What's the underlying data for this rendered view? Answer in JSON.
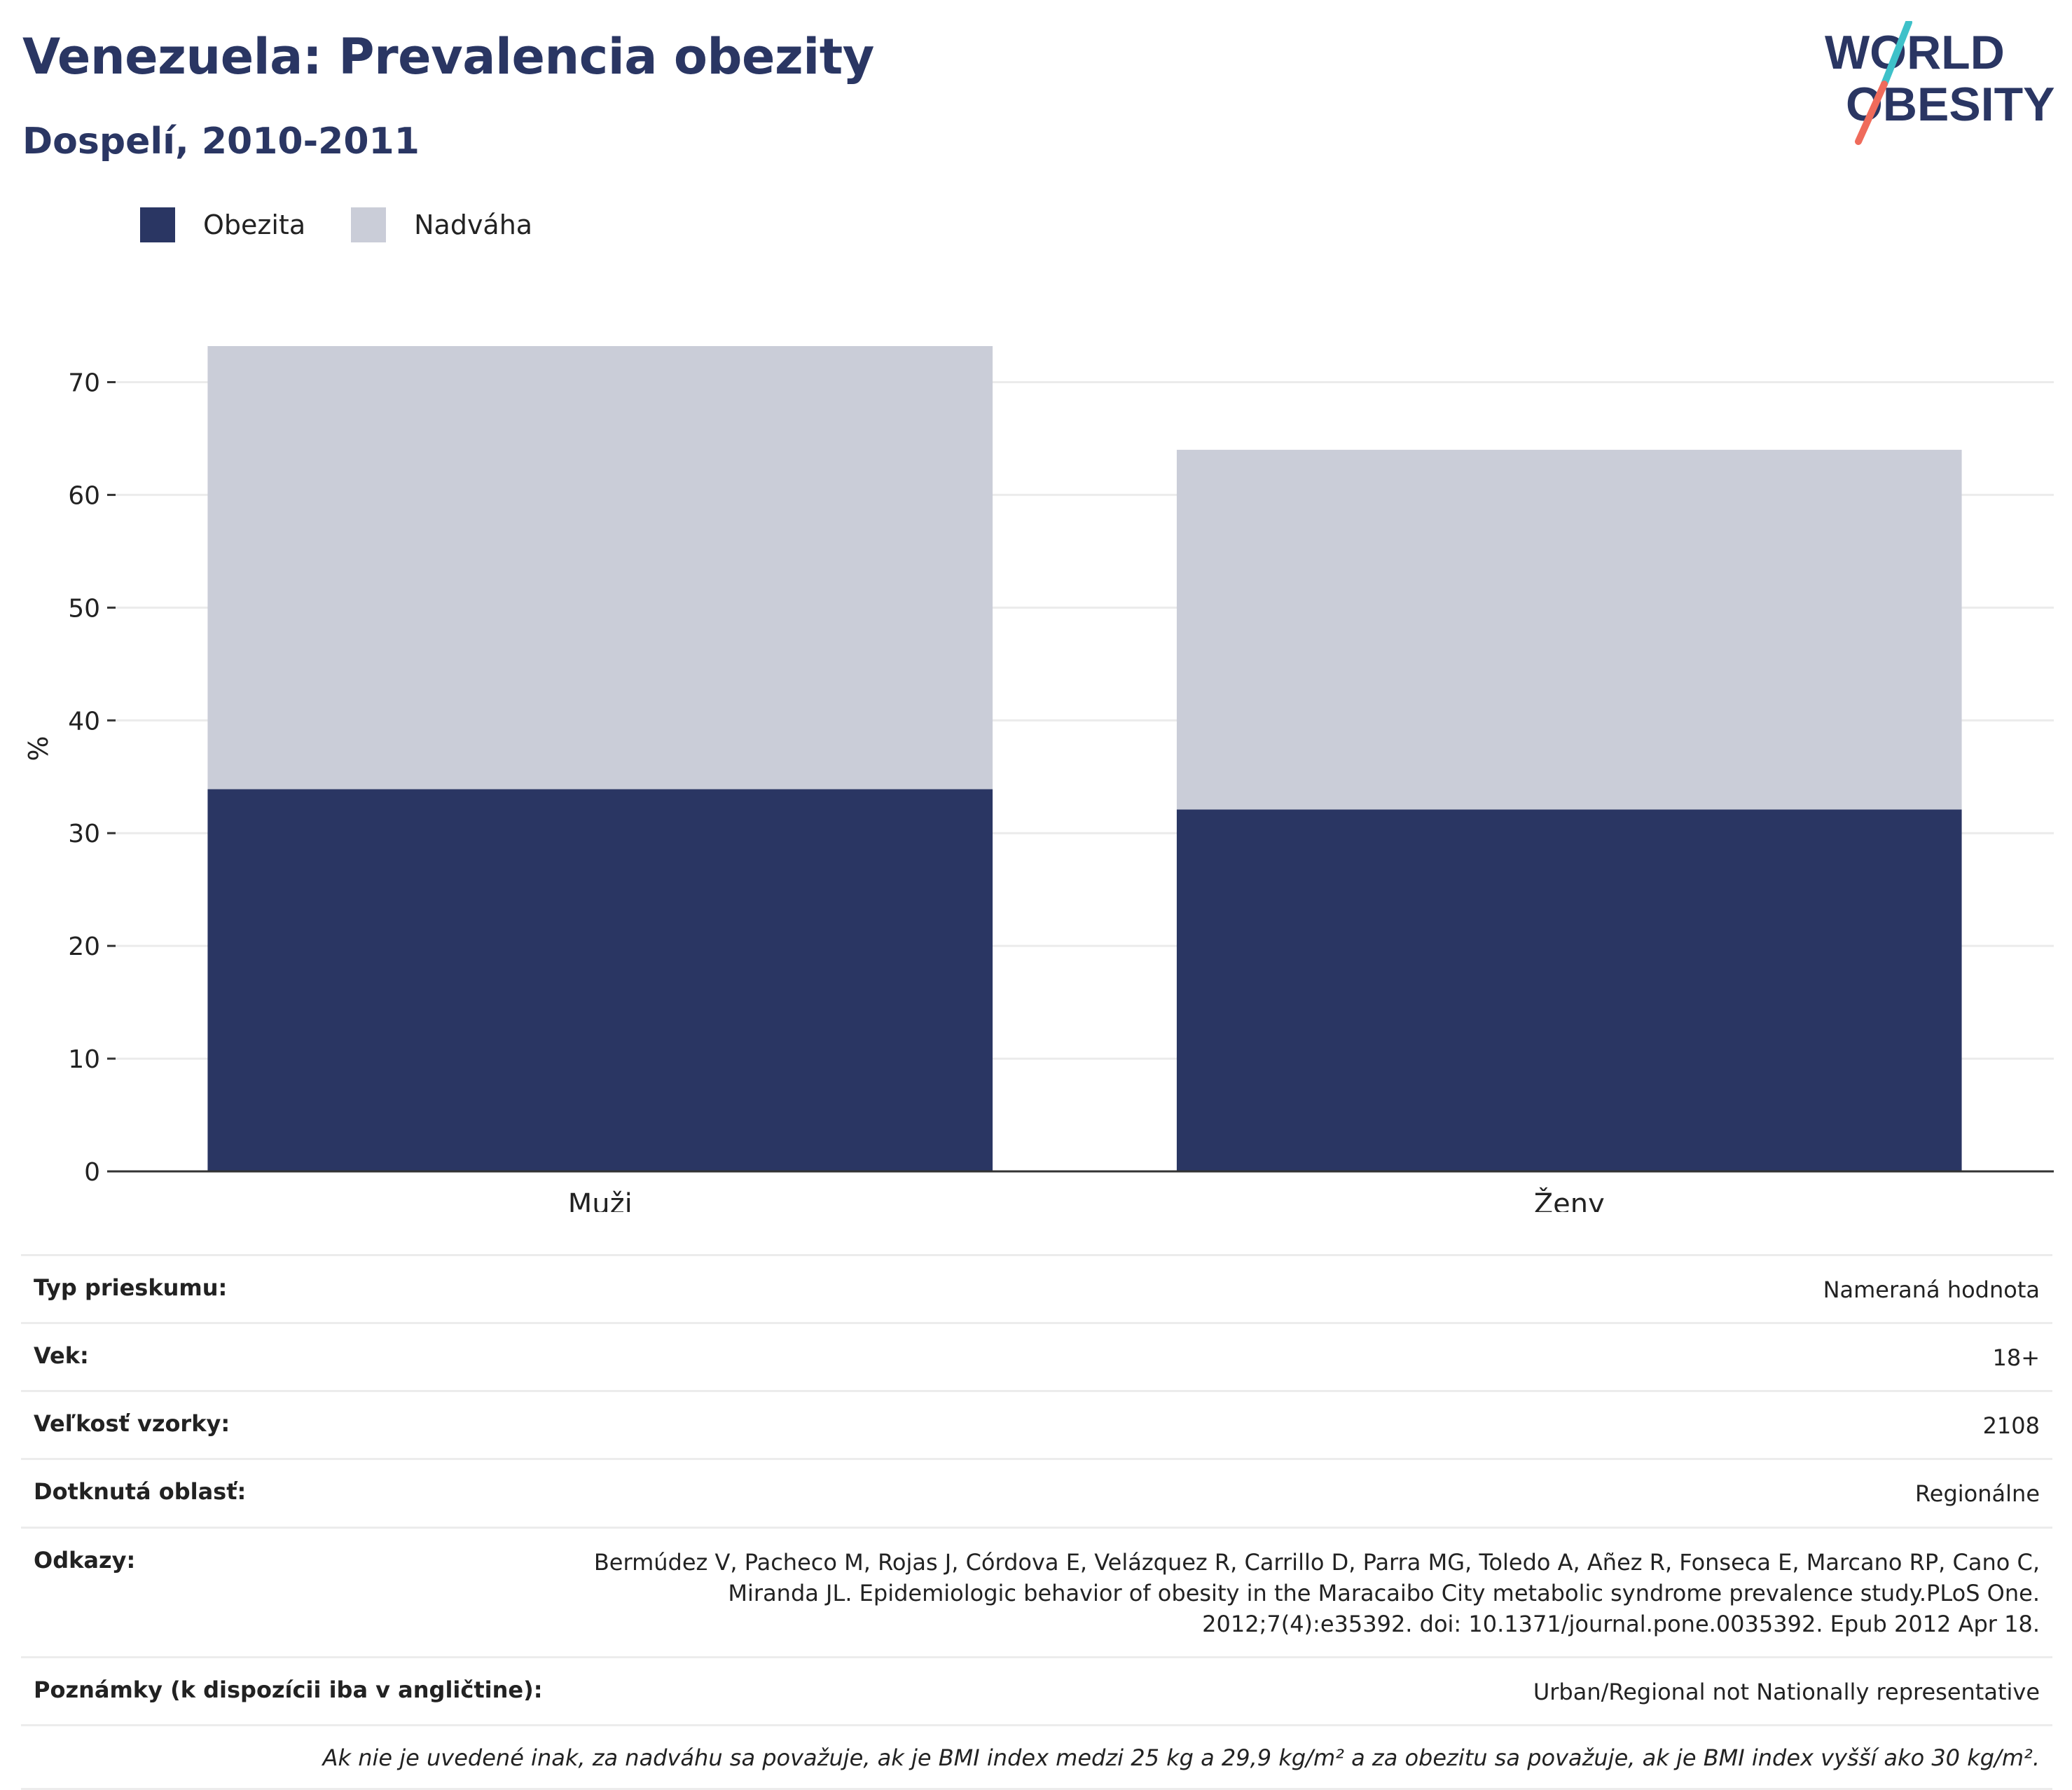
{
  "header": {
    "title": "Venezuela: Prevalencia obezity",
    "subtitle": "Dospelí, 2010-2011",
    "logo_line1": "WORLD",
    "logo_line2": "OBESITY"
  },
  "legend": [
    {
      "label": "Obezita",
      "color": "#2a3663"
    },
    {
      "label": "Nadváha",
      "color": "#cacdd8"
    }
  ],
  "chart_data": {
    "type": "bar",
    "stacked": true,
    "categories": [
      "Muži",
      "Ženy"
    ],
    "series": [
      {
        "name": "Obezita",
        "values": [
          33.9,
          32.1
        ],
        "color": "#2a3663"
      },
      {
        "name": "Nadváha",
        "values": [
          39.3,
          31.9
        ],
        "color": "#cacdd8"
      }
    ],
    "totals": [
      73.2,
      64.0
    ],
    "ylabel": "%",
    "ylim": [
      0,
      75
    ],
    "yticks": [
      0,
      10,
      20,
      30,
      40,
      50,
      60,
      70
    ],
    "grid": true,
    "legend_position": "top-left"
  },
  "info": {
    "rows": [
      {
        "key": "Typ prieskumu:",
        "value": "Nameraná hodnota"
      },
      {
        "key": "Vek:",
        "value": "18+"
      },
      {
        "key": "Veľkosť vzorky:",
        "value": "2108"
      },
      {
        "key": "Dotknutá oblasť:",
        "value": "Regionálne"
      },
      {
        "key": "Odkazy:",
        "value": "Bermúdez V, Pacheco M, Rojas J, Córdova E, Velázquez R, Carrillo D, Parra MG, Toledo A, Añez R, Fonseca E, Marcano RP, Cano C, Miranda JL. Epidemiologic behavior of obesity in the Maracaibo City metabolic syndrome prevalence study.PLoS One. 2012;7(4):e35392. doi: 10.1371/journal.pone.0035392. Epub 2012 Apr 18."
      },
      {
        "key": "Poznámky (k dispozícii iba v angličtine):",
        "value": "Urban/Regional not Nationally representative"
      }
    ],
    "footnote": "Ak nie je uvedené inak, za nadváhu sa považuje, ak je BMI index medzi 25 kg a 29,9 kg/m² a za obezitu sa považuje, ak je BMI index vyšší ako 30 kg/m²."
  }
}
